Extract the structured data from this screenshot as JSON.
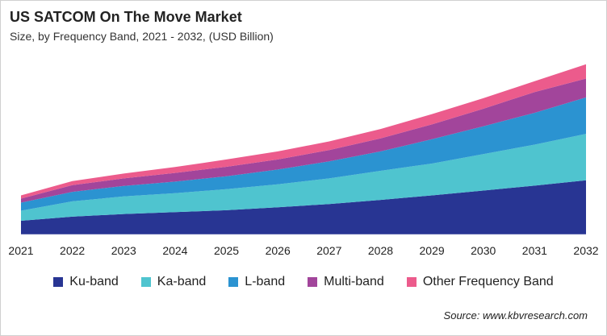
{
  "chart_data": {
    "type": "area",
    "stacked": true,
    "title": "US SATCOM On The Move Market",
    "subtitle": "Size, by Frequency Band, 2021 - 2032, (USD Billion)",
    "categories": [
      "2021",
      "2022",
      "2023",
      "2024",
      "2025",
      "2026",
      "2027",
      "2028",
      "2029",
      "2030",
      "2031",
      "2032"
    ],
    "ylim": [
      0,
      65
    ],
    "grid": false,
    "y_axis_shown": false,
    "legend_placement": "bottom",
    "series": [
      {
        "name": "Ku-band",
        "color": "#283593",
        "values": [
          5.0,
          6.5,
          7.5,
          8.2,
          8.9,
          10.0,
          11.2,
          12.7,
          14.4,
          16.2,
          18.0,
          20.0
        ]
      },
      {
        "name": "Ka-band",
        "color": "#4FC4CF",
        "values": [
          3.7,
          5.7,
          6.5,
          7.0,
          7.8,
          8.5,
          9.5,
          10.8,
          11.8,
          13.5,
          15.2,
          17.2
        ]
      },
      {
        "name": "L-band",
        "color": "#2B93D1",
        "values": [
          3.0,
          3.5,
          3.9,
          4.3,
          4.8,
          5.5,
          6.3,
          7.2,
          9.0,
          10.3,
          11.8,
          13.5
        ]
      },
      {
        "name": "Multi-band",
        "color": "#A2459B",
        "values": [
          1.5,
          2.5,
          2.8,
          3.2,
          3.5,
          3.7,
          4.2,
          4.8,
          5.5,
          6.5,
          7.7,
          7.0
        ]
      },
      {
        "name": "Other Frequency Band",
        "color": "#EC5B8C",
        "values": [
          1.2,
          1.5,
          1.8,
          2.2,
          2.7,
          3.0,
          3.2,
          3.5,
          3.8,
          3.9,
          4.0,
          5.3
        ]
      }
    ],
    "source": "Source: www.kbvresearch.com"
  }
}
